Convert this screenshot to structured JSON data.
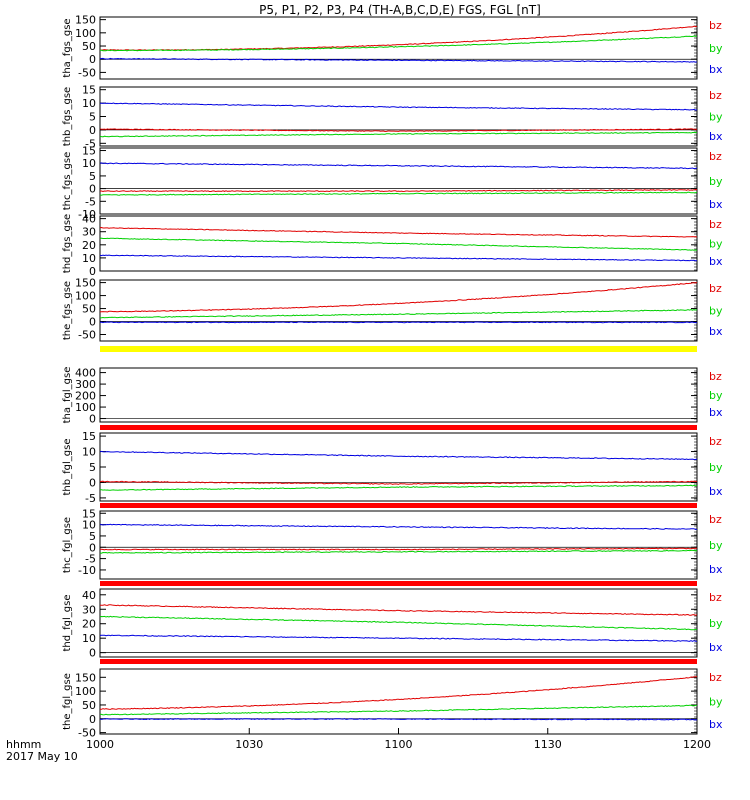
{
  "title": "P5, P1, P2, P3, P4 (TH-A,B,C,D,E) FGS, FGL [nT]",
  "x_axis": {
    "label_line1": "hhmm",
    "label_line2": "2017 May 10",
    "ticks": [
      "1000",
      "1030",
      "1100",
      "1130",
      "1200"
    ]
  },
  "colors": {
    "bz": "#e00000",
    "by": "#00d000",
    "bx": "#0000e0",
    "yellow_bar": "#ffff00",
    "red_bar": "#ff0000"
  },
  "chart_data": [
    {
      "type": "line",
      "name": "tha_fgs_gse",
      "ylabel": "tha_fgs_gse",
      "ylim": [
        -75,
        160
      ],
      "yticks": [
        "150",
        "100",
        "50",
        "0",
        "-50"
      ],
      "ytick_values": [
        150,
        100,
        50,
        0,
        -50
      ],
      "legend": [
        "bz",
        "by",
        "bx"
      ],
      "bar_below": null,
      "x": [
        "10:00",
        "11:00",
        "12:00"
      ],
      "series": [
        {
          "name": "bz",
          "shape": "curved",
          "values": [
            35,
            55,
            125
          ]
        },
        {
          "name": "by",
          "shape": "curved",
          "values": [
            33,
            47,
            88
          ]
        },
        {
          "name": "bx",
          "shape": "linear",
          "values": [
            2,
            -4,
            -10
          ]
        }
      ]
    },
    {
      "type": "line",
      "name": "thb_fgs_gse",
      "ylabel": "thb_fgs_gse",
      "ylim": [
        -6,
        16
      ],
      "yticks": [
        "15",
        "10",
        "5",
        "0",
        "-5"
      ],
      "ytick_values": [
        15,
        10,
        5,
        0,
        -5
      ],
      "legend": [
        "bz",
        "by",
        "bx"
      ],
      "bar_below": null,
      "x": [
        "10:00",
        "11:00",
        "12:00"
      ],
      "series": [
        {
          "name": "bz",
          "shape": "flat",
          "values": [
            0.3,
            -0.5,
            0.3
          ]
        },
        {
          "name": "by",
          "shape": "flat",
          "values": [
            -2.5,
            -1.5,
            -1
          ]
        },
        {
          "name": "bx",
          "shape": "flat",
          "values": [
            10,
            8.5,
            7.5
          ]
        }
      ]
    },
    {
      "type": "line",
      "name": "thc_fgs_gse",
      "ylabel": "thc_fgs_gse",
      "ylim": [
        -10,
        16
      ],
      "yticks": [
        "15",
        "10",
        "5",
        "0",
        "-5",
        "-10"
      ],
      "ytick_values": [
        15,
        10,
        5,
        0,
        -5,
        -10
      ],
      "legend": [
        "bz",
        "by",
        "bx"
      ],
      "bar_below": null,
      "x": [
        "10:00",
        "11:00",
        "12:00"
      ],
      "series": [
        {
          "name": "bz",
          "shape": "flat",
          "values": [
            -1,
            -1,
            -0.5
          ]
        },
        {
          "name": "by",
          "shape": "flat",
          "values": [
            -2.5,
            -2,
            -1.5
          ]
        },
        {
          "name": "bx",
          "shape": "flat",
          "values": [
            10,
            9,
            8
          ]
        }
      ]
    },
    {
      "type": "line",
      "name": "thd_fgs_gse",
      "ylabel": "thd_fgs_gse",
      "ylim": [
        0,
        42
      ],
      "yticks": [
        "40",
        "30",
        "20",
        "10",
        "0"
      ],
      "ytick_values": [
        40,
        30,
        20,
        10,
        0
      ],
      "legend": [
        "bz",
        "by",
        "bx"
      ],
      "bar_below": null,
      "x": [
        "10:00",
        "11:00",
        "12:00"
      ],
      "series": [
        {
          "name": "bz",
          "shape": "linear",
          "values": [
            33,
            29,
            26
          ]
        },
        {
          "name": "by",
          "shape": "linear",
          "values": [
            25,
            21,
            16
          ]
        },
        {
          "name": "bx",
          "shape": "linear",
          "values": [
            12,
            10,
            8
          ]
        }
      ]
    },
    {
      "type": "line",
      "name": "the_fgs_gse",
      "ylabel": "the_fgs_gse",
      "ylim": [
        -75,
        160
      ],
      "yticks": [
        "150",
        "100",
        "50",
        "0",
        "-50"
      ],
      "ytick_values": [
        150,
        100,
        50,
        0,
        -50
      ],
      "legend": [
        "bz",
        "by",
        "bx"
      ],
      "bar_below": "yellow_bar",
      "x": [
        "10:00",
        "11:00",
        "12:00"
      ],
      "series": [
        {
          "name": "bz",
          "shape": "curved",
          "values": [
            38,
            70,
            150
          ]
        },
        {
          "name": "by",
          "shape": "linear",
          "values": [
            15,
            28,
            45
          ]
        },
        {
          "name": "bx",
          "shape": "linear",
          "values": [
            -3,
            -3,
            -3
          ]
        }
      ]
    },
    {
      "type": "line",
      "name": "tha_fgl_gse",
      "ylabel": "tha_fgl_gse",
      "ylim": [
        -30,
        440
      ],
      "yticks": [
        "400",
        "300",
        "200",
        "100",
        "0"
      ],
      "ytick_values": [
        400,
        300,
        200,
        100,
        0
      ],
      "legend": [
        "bz",
        "by",
        "bx"
      ],
      "bar_below": "red_bar",
      "x": [],
      "series": []
    },
    {
      "type": "line",
      "name": "thb_fgl_gse",
      "ylabel": "thb_fgl_gse",
      "ylim": [
        -6,
        16
      ],
      "yticks": [
        "15",
        "10",
        "5",
        "0",
        "-5"
      ],
      "ytick_values": [
        15,
        10,
        5,
        0,
        -5
      ],
      "legend": [
        "bz",
        "by",
        "bx"
      ],
      "bar_below": "red_bar",
      "x": [
        "10:00",
        "11:00",
        "12:00"
      ],
      "series": [
        {
          "name": "bz",
          "shape": "flat",
          "values": [
            0.3,
            -0.5,
            0.3
          ]
        },
        {
          "name": "by",
          "shape": "flat",
          "values": [
            -2.5,
            -1.5,
            -1
          ]
        },
        {
          "name": "bx",
          "shape": "flat",
          "values": [
            10,
            8.5,
            7.5
          ]
        }
      ]
    },
    {
      "type": "line",
      "name": "thc_fgl_gse",
      "ylabel": "thc_fgl_gse",
      "ylim": [
        -14,
        16
      ],
      "yticks": [
        "15",
        "10",
        "5",
        "0",
        "-5",
        "-10"
      ],
      "ytick_values": [
        15,
        10,
        5,
        0,
        -5,
        -10
      ],
      "legend": [
        "bz",
        "by",
        "bx"
      ],
      "bar_below": "red_bar",
      "x": [
        "10:00",
        "11:00",
        "12:00"
      ],
      "series": [
        {
          "name": "bz",
          "shape": "flat",
          "values": [
            -1,
            -1,
            -0.5
          ]
        },
        {
          "name": "by",
          "shape": "flat",
          "values": [
            -2.5,
            -2,
            -1.5
          ]
        },
        {
          "name": "bx",
          "shape": "flat",
          "values": [
            10,
            9,
            8
          ]
        }
      ]
    },
    {
      "type": "line",
      "name": "thd_fgl_gse",
      "ylabel": "thd_fgl_gse",
      "ylim": [
        -3,
        44
      ],
      "yticks": [
        "40",
        "30",
        "20",
        "10",
        "0"
      ],
      "ytick_values": [
        40,
        30,
        20,
        10,
        0
      ],
      "legend": [
        "bz",
        "by",
        "bx"
      ],
      "bar_below": "red_bar",
      "x": [
        "10:00",
        "11:00",
        "12:00"
      ],
      "series": [
        {
          "name": "bz",
          "shape": "linear",
          "values": [
            33,
            29,
            26
          ]
        },
        {
          "name": "by",
          "shape": "linear",
          "values": [
            25,
            21,
            16
          ]
        },
        {
          "name": "bx",
          "shape": "linear",
          "values": [
            12,
            10,
            8
          ]
        }
      ]
    },
    {
      "type": "line",
      "name": "the_fgl_gse",
      "ylabel": "the_fgl_gse",
      "ylim": [
        -55,
        180
      ],
      "yticks": [
        "150",
        "100",
        "50",
        "0",
        "-50"
      ],
      "ytick_values": [
        150,
        100,
        50,
        0,
        -50
      ],
      "legend": [
        "bz",
        "by",
        "bx"
      ],
      "bar_below": null,
      "x": [
        "10:00",
        "11:00",
        "12:00"
      ],
      "series": [
        {
          "name": "bz",
          "shape": "curved",
          "values": [
            35,
            70,
            152
          ]
        },
        {
          "name": "by",
          "shape": "linear",
          "values": [
            15,
            28,
            48
          ]
        },
        {
          "name": "bx",
          "shape": "linear",
          "values": [
            -1,
            -1,
            -3
          ]
        }
      ]
    }
  ]
}
